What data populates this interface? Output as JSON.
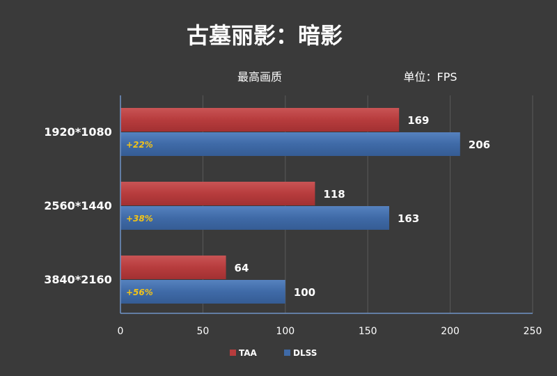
{
  "chart_data": {
    "type": "bar",
    "orientation": "horizontal",
    "title": "古墓丽影：暗影",
    "subtitle": "最高画质",
    "unit_label": "单位：FPS",
    "categories": [
      "1920*1080",
      "2560*1440",
      "3840*2160"
    ],
    "series": [
      {
        "name": "TAA",
        "values": [
          169,
          118,
          64
        ],
        "color": "#b73c3d"
      },
      {
        "name": "DLSS",
        "values": [
          206,
          163,
          100
        ],
        "color": "#3f6aa7"
      }
    ],
    "gain_labels": [
      "+22%",
      "+38%",
      "+56%"
    ],
    "xlim": [
      0,
      250
    ],
    "xticks": [
      0,
      50,
      100,
      150,
      200,
      250
    ],
    "grid": true,
    "legend": "bottom-center",
    "colors": {
      "background": "#3a3a3a",
      "text": "#ffffff",
      "axis": "#6f93c8",
      "grid": "#5a5a5a",
      "gain": "#f2c318"
    }
  }
}
